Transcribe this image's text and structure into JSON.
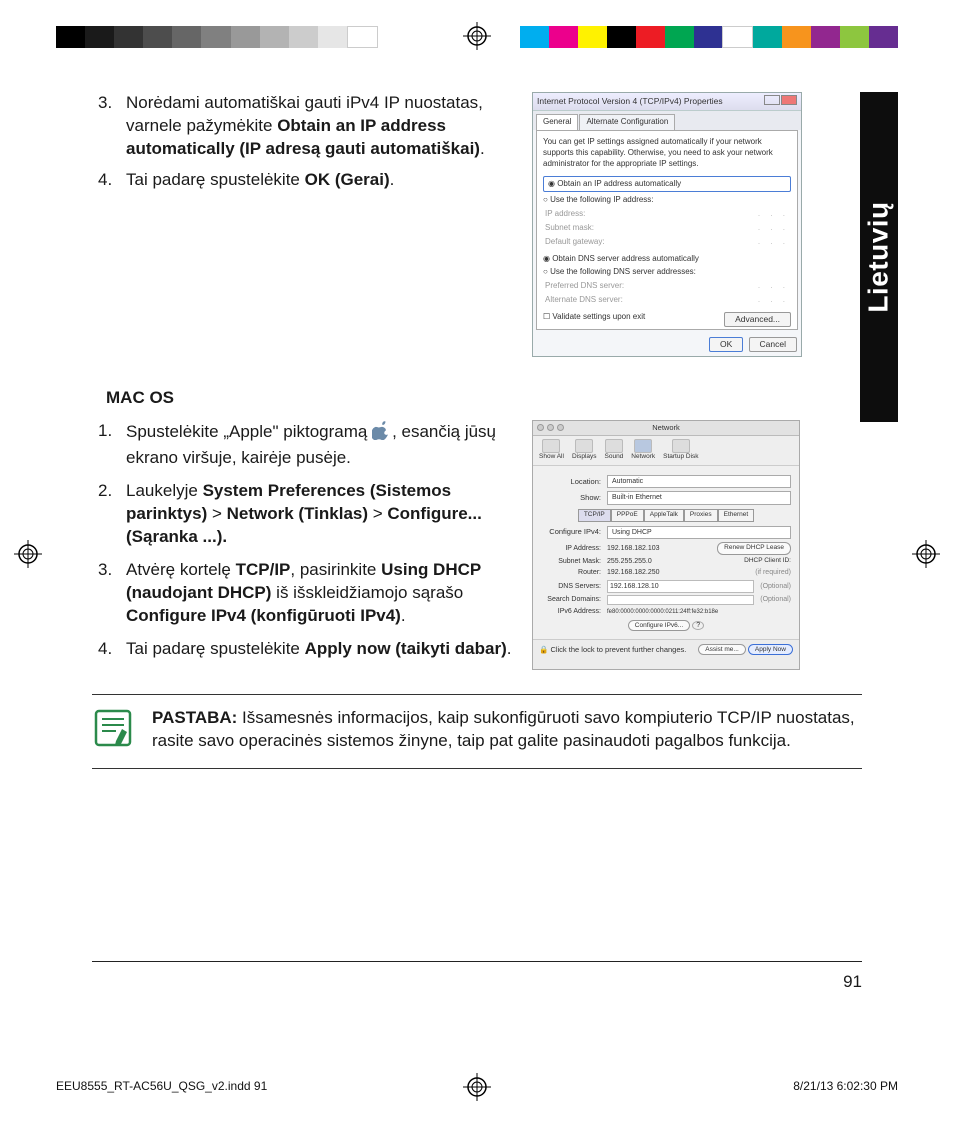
{
  "print": {
    "grayscale": [
      "#000000",
      "#1a1a1a",
      "#333333",
      "#4d4d4d",
      "#666666",
      "#808080",
      "#999999",
      "#b3b3b3",
      "#cccccc",
      "#e6e6e6",
      "#ffffff"
    ],
    "colorRow": [
      "#00aeef",
      "#ec008c",
      "#fff200",
      "#000000",
      "#ed1c24",
      "#00a651",
      "#2e3192",
      "#ffffff",
      "#00a99d",
      "#f7941d",
      "#92278f",
      "#8dc63f",
      "#662d91"
    ],
    "footerFile": "EEU8555_RT-AC56U_QSG_v2.indd   91",
    "footerDate": "8/21/13   6:02:30 PM"
  },
  "sideTab": "Lietuvių",
  "listA": {
    "i3": {
      "pre": "Norėdami automatiškai gauti iPv4 IP nuostatas, varnele pažymėkite ",
      "bold": "Obtain an IP address automatically (IP adresą gauti automatiškai)",
      "post": "."
    },
    "i4": {
      "pre": "Tai padarę spustelėkite ",
      "bold": "OK (Gerai)",
      "post": "."
    }
  },
  "winSS": {
    "title": "Internet Protocol Version 4 (TCP/IPv4) Properties",
    "tabGeneral": "General",
    "tabAlt": "Alternate Configuration",
    "desc": "You can get IP settings assigned automatically if your network supports this capability. Otherwise, you need to ask your network administrator for the appropriate IP settings.",
    "r1": "Obtain an IP address automatically",
    "r2": "Use the following IP address:",
    "ip": "IP address:",
    "subnet": "Subnet mask:",
    "gw": "Default gateway:",
    "r3": "Obtain DNS server address automatically",
    "r4": "Use the following DNS server addresses:",
    "pdns": "Preferred DNS server:",
    "adns": "Alternate DNS server:",
    "validate": "Validate settings upon exit",
    "adv": "Advanced...",
    "ok": "OK",
    "cancel": "Cancel"
  },
  "macHead": "MAC OS",
  "listB": {
    "i1": {
      "pre": "Spustelėkite „Apple\" piktogramą ",
      "post": ", esančią jūsų ekrano viršuje, kairėje pusėje."
    },
    "i2": {
      "pre": "Laukelyje ",
      "b1": "System Preferences (Sistemos parinktys)",
      "gt1": " > ",
      "b2": "Network (Tinklas)",
      "gt2": " > ",
      "b3": "Configure... (Sąranka ...)."
    },
    "i3": {
      "pre": "Atvėrę kortelę ",
      "b1": "TCP/IP",
      "mid1": ", pasirinkite ",
      "b2": "Using DHCP (naudojant DHCP)",
      "mid2": " iš išskleidžiamojo sąrašo ",
      "b3": "Configure IPv4 (konfigūruoti IPv4)",
      "post": "."
    },
    "i4": {
      "pre": "Tai padarę spustelėkite ",
      "bold": "Apply now (taikyti dabar)",
      "post": "."
    }
  },
  "macSS": {
    "title": "Network",
    "tb": [
      "Show All",
      "Displays",
      "Sound",
      "Network",
      "Startup Disk"
    ],
    "location": "Location:",
    "locationVal": "Automatic",
    "show": "Show:",
    "showVal": "Built-in Ethernet",
    "tabs": [
      "TCP/IP",
      "PPPoE",
      "AppleTalk",
      "Proxies",
      "Ethernet"
    ],
    "cfg": "Configure IPv4:",
    "cfgVal": "Using DHCP",
    "ipL": "IP Address:",
    "ipV": "192.168.182.103",
    "subL": "Subnet Mask:",
    "subV": "255.255.255.0",
    "rtL": "Router:",
    "rtV": "192.168.182.250",
    "dnsL": "DNS Servers:",
    "dnsV": "192.168.128.10",
    "sdL": "Search Domains:",
    "v6L": "IPv6 Address:",
    "v6V": "fe80:0000:0000:0000:0211:24ff:fe32:b18e",
    "renew": "Renew DHCP Lease",
    "cid": "DHCP Client ID:",
    "opt": "(Optional)",
    "req": "(if required)",
    "cfg6": "Configure IPv6...",
    "lock": "Click the lock to prevent further changes.",
    "assist": "Assist me...",
    "apply": "Apply Now"
  },
  "note": {
    "label": "PASTABA:",
    "text": "   Išsamesnės informacijos, kaip sukonfigūruoti savo kompiuterio TCP/IP nuostatas, rasite savo operacinės sistemos žinyne, taip pat galite pasinaudoti pagalbos funkcija."
  },
  "pageNum": "91"
}
